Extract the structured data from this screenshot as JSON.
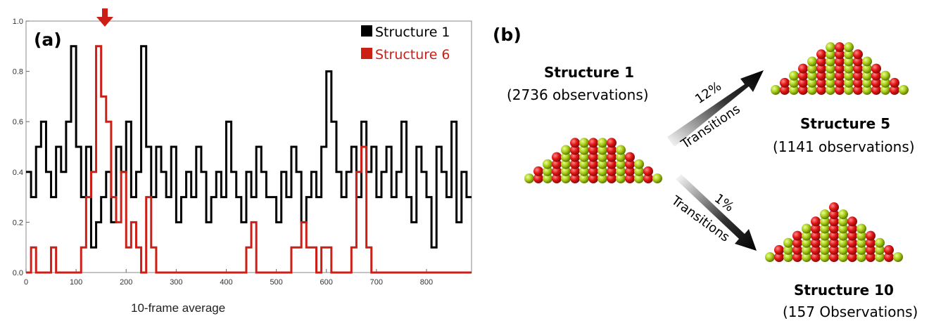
{
  "panel_a": {
    "letter": "(a)",
    "marker_color": "#cc1f16"
  },
  "panel_b": {
    "letter": "(b)",
    "source": {
      "name": "Structure 1",
      "observations": "(2736 observations)"
    },
    "targets": [
      {
        "name": "Structure 5",
        "observations": "(1141 observations)",
        "percent": "12%",
        "label": "Transitions"
      },
      {
        "name": "Structure 10",
        "observations": "(157 Observations)",
        "percent": "1%",
        "label": "Transitions"
      }
    ],
    "atom_colors": {
      "red": "#e01414",
      "green": "#a8cc14"
    }
  },
  "chart_data": {
    "type": "line",
    "title": "",
    "xlabel": "10-frame average",
    "ylabel": "",
    "xlim": [
      0,
      890
    ],
    "ylim": [
      0,
      1.0
    ],
    "xticks": [
      0,
      100,
      200,
      300,
      400,
      500,
      600,
      700,
      800
    ],
    "yticks": [
      0.0,
      0.2,
      0.4,
      0.6,
      0.8,
      1.0
    ],
    "ytick_labels": [
      "0.0",
      "0.2",
      "0.4",
      "0.6",
      "0.8",
      "1.0"
    ],
    "legend": {
      "placement": "top-right"
    },
    "series": [
      {
        "name": "Structure 1",
        "color": "#000000",
        "x": [
          0,
          10,
          20,
          30,
          40,
          50,
          60,
          70,
          80,
          90,
          100,
          110,
          120,
          130,
          140,
          150,
          160,
          170,
          180,
          190,
          200,
          210,
          220,
          230,
          240,
          250,
          260,
          270,
          280,
          290,
          300,
          310,
          320,
          330,
          340,
          350,
          360,
          370,
          380,
          390,
          400,
          410,
          420,
          430,
          440,
          450,
          460,
          470,
          480,
          490,
          500,
          510,
          520,
          530,
          540,
          550,
          560,
          570,
          580,
          590,
          600,
          610,
          620,
          630,
          640,
          650,
          660,
          670,
          680,
          690,
          700,
          710,
          720,
          730,
          740,
          750,
          760,
          770,
          780,
          790,
          800,
          810,
          820,
          830,
          840,
          850,
          860,
          870,
          880
        ],
        "values": [
          0.4,
          0.3,
          0.5,
          0.6,
          0.4,
          0.3,
          0.5,
          0.4,
          0.6,
          0.9,
          0.5,
          0.3,
          0.5,
          0.1,
          0.2,
          0.3,
          0.4,
          0.2,
          0.5,
          0.4,
          0.6,
          0.3,
          0.4,
          0.9,
          0.5,
          0.3,
          0.5,
          0.4,
          0.3,
          0.5,
          0.2,
          0.3,
          0.4,
          0.3,
          0.5,
          0.4,
          0.2,
          0.3,
          0.4,
          0.3,
          0.6,
          0.4,
          0.3,
          0.2,
          0.4,
          0.3,
          0.5,
          0.4,
          0.3,
          0.3,
          0.2,
          0.4,
          0.3,
          0.5,
          0.4,
          0.2,
          0.3,
          0.4,
          0.3,
          0.5,
          0.8,
          0.6,
          0.4,
          0.3,
          0.4,
          0.5,
          0.3,
          0.6,
          0.4,
          0.5,
          0.3,
          0.4,
          0.5,
          0.3,
          0.4,
          0.6,
          0.3,
          0.2,
          0.5,
          0.4,
          0.3,
          0.1,
          0.5,
          0.4,
          0.3,
          0.6,
          0.2,
          0.4,
          0.3
        ]
      },
      {
        "name": "Structure 6",
        "color": "#cc1f16",
        "x": [
          0,
          10,
          20,
          30,
          40,
          50,
          60,
          70,
          80,
          90,
          100,
          110,
          120,
          130,
          140,
          150,
          160,
          170,
          180,
          190,
          200,
          210,
          220,
          230,
          240,
          250,
          260,
          270,
          280,
          290,
          300,
          310,
          320,
          330,
          340,
          350,
          360,
          370,
          380,
          390,
          400,
          410,
          420,
          430,
          440,
          450,
          460,
          470,
          480,
          490,
          500,
          510,
          520,
          530,
          540,
          550,
          560,
          570,
          580,
          590,
          600,
          610,
          620,
          630,
          640,
          650,
          660,
          670,
          680,
          690,
          700,
          710,
          720,
          730,
          740,
          750,
          760,
          770,
          780,
          790,
          800,
          810,
          820,
          830,
          840,
          850,
          860,
          870,
          880
        ],
        "values": [
          0.0,
          0.1,
          0.0,
          0.0,
          0.0,
          0.1,
          0.0,
          0.0,
          0.0,
          0.0,
          0.0,
          0.1,
          0.3,
          0.4,
          0.9,
          0.7,
          0.6,
          0.3,
          0.2,
          0.4,
          0.1,
          0.2,
          0.1,
          0.0,
          0.3,
          0.1,
          0.0,
          0.0,
          0.0,
          0.0,
          0.0,
          0.0,
          0.0,
          0.0,
          0.0,
          0.0,
          0.0,
          0.0,
          0.0,
          0.0,
          0.0,
          0.0,
          0.0,
          0.0,
          0.1,
          0.2,
          0.0,
          0.0,
          0.0,
          0.0,
          0.0,
          0.0,
          0.0,
          0.1,
          0.1,
          0.2,
          0.1,
          0.1,
          0.0,
          0.1,
          0.1,
          0.0,
          0.0,
          0.0,
          0.0,
          0.1,
          0.4,
          0.5,
          0.1,
          0.0,
          0.0,
          0.0,
          0.0,
          0.0,
          0.0,
          0.0,
          0.0,
          0.0,
          0.0,
          0.0,
          0.0,
          0.0,
          0.0,
          0.0,
          0.0,
          0.0,
          0.0,
          0.0,
          0.0
        ]
      }
    ]
  }
}
